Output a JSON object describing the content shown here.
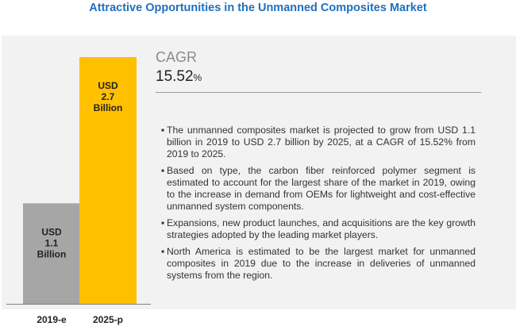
{
  "title": "Attractive Opportunities in the Unmanned Composites Market",
  "cagr": {
    "label": "CAGR",
    "value": "15.52",
    "unit": "%"
  },
  "bullets": [
    "The unmanned composites market is projected to grow from USD 1.1 billion in 2019 to USD 2.7 billion by 2025, at a CAGR of 15.52% from 2019 to 2025.",
    "Based on type, the carbon fiber reinforced polymer segment is estimated to account for the largest share of the market in 2019, owing to the increase in demand from OEMs for lightweight and cost-effective unmanned system components.",
    "Expansions, new product launches, and acquisitions are the key growth strategies adopted by the leading market players.",
    "North America is estimated to be the largest market for unmanned composites in 2019 due to the increase in deliveries of unmanned systems from the region."
  ],
  "chart_data": {
    "type": "bar",
    "categories": [
      "2019-e",
      "2025-p"
    ],
    "values": [
      1.1,
      2.7
    ],
    "bar_labels": [
      [
        "USD",
        "1.1",
        "Billion"
      ],
      [
        "USD",
        "2.7",
        "Billion"
      ]
    ],
    "colors": [
      "#a6a6a6",
      "#ffc000"
    ],
    "label_colors": [
      "#222222",
      "#222222"
    ],
    "ylim": [
      0,
      2.7
    ],
    "grid": false
  }
}
